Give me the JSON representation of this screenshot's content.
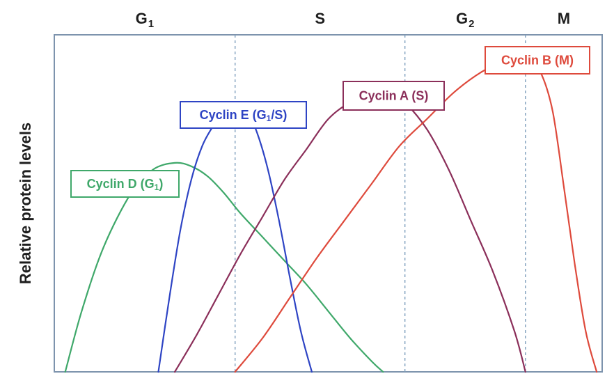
{
  "chart_data": {
    "type": "line",
    "title": "",
    "xlabel": "",
    "ylabel": "Relative protein levels",
    "xlim": [
      0,
      100
    ],
    "ylim": [
      0,
      100
    ],
    "phase_boundaries": [
      33,
      64,
      86
    ],
    "phases": [
      {
        "main": "G",
        "sub": "1"
      },
      {
        "main": "S",
        "sub": ""
      },
      {
        "main": "G",
        "sub": "2"
      },
      {
        "main": "M",
        "sub": ""
      }
    ],
    "series": [
      {
        "name": "Cyclin D",
        "label_main": "Cyclin D (G",
        "label_sub": "1",
        "label_tail": ")",
        "color": "#3fa86a",
        "x": [
          2,
          5,
          9,
          14,
          18,
          22,
          25,
          28,
          31,
          34,
          38,
          42,
          46,
          50,
          54,
          58,
          60
        ],
        "y": [
          0,
          18,
          37,
          53,
          60,
          62,
          61,
          58,
          53,
          47,
          40,
          33,
          26,
          18,
          10,
          3,
          0
        ]
      },
      {
        "name": "Cyclin E",
        "label_main": "Cyclin E (G",
        "label_sub": "1",
        "label_tail": "/S)",
        "color": "#2e44c4",
        "x": [
          19,
          21,
          23,
          25,
          27,
          29,
          31,
          33,
          35,
          37,
          39,
          41,
          43,
          45,
          47
        ],
        "y": [
          0,
          22,
          42,
          57,
          67,
          73,
          78,
          79,
          78,
          71,
          60,
          45,
          28,
          12,
          0
        ]
      },
      {
        "name": "Cyclin A",
        "label_main": "Cyclin A (S)",
        "label_sub": "",
        "label_tail": "",
        "color": "#8b2f5a",
        "x": [
          22,
          26,
          30,
          34,
          38,
          42,
          46,
          50,
          54,
          58,
          60,
          62,
          64,
          68,
          72,
          76,
          80,
          84,
          86
        ],
        "y": [
          0,
          11,
          23,
          35,
          46,
          57,
          66,
          75,
          80,
          83,
          84,
          82,
          80,
          72,
          60,
          45,
          30,
          12,
          0
        ]
      },
      {
        "name": "Cyclin B",
        "label_main": "Cyclin B (M)",
        "label_sub": "",
        "label_tail": "",
        "color": "#de4a3c",
        "x": [
          33,
          38,
          43,
          48,
          53,
          58,
          63,
          68,
          73,
          78,
          82,
          85,
          87,
          89,
          91,
          93,
          95,
          97,
          99
        ],
        "y": [
          0,
          10,
          22,
          34,
          45,
          56,
          67,
          75,
          83,
          89,
          92,
          93,
          92,
          88,
          77,
          55,
          32,
          12,
          0
        ]
      }
    ]
  }
}
